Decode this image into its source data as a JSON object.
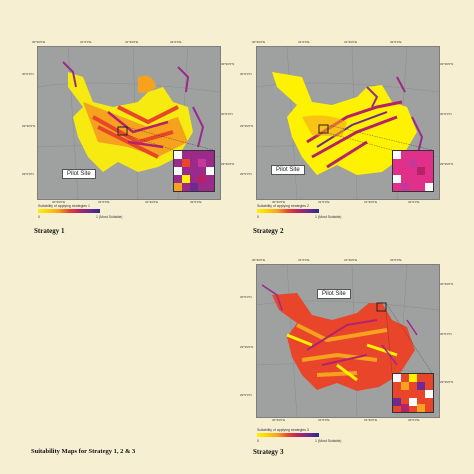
{
  "figure_caption": "Suitability Maps for Strategy 1, 2 & 3",
  "legend_min": "0",
  "colors": {
    "background": "#f7efd2",
    "map_base": "#9ea19f",
    "low": "#fff200",
    "mid": "#e9452b",
    "high": "#2e2a86"
  },
  "panels": [
    {
      "caption": "Strategy 1",
      "pilot_label": "Pilot Site",
      "legend_title": "Suitability of applying strategies 1",
      "legend_max": "1 (Most Suitable)",
      "top_ticks": [
        "30°30'0\"E",
        "31°0'0\"E",
        "31°30'0\"E",
        "32°0'0\"E"
      ],
      "left_ticks": [
        "30°0'0\"N",
        "29°30'0\"N",
        "29°0'0\"N"
      ],
      "right_ticks": [
        "30°30'0\"N",
        "30°0'0\"N",
        "29°30'0\"N"
      ],
      "bottom_ticks": [
        "30°30'0\"E",
        "31°0'0\"E",
        "31°30'0\"E",
        "32°0'0\"E"
      ]
    },
    {
      "caption": "Strategy 2",
      "pilot_label": "Pilot Site",
      "legend_title": "Suitability of applying strategies 2",
      "legend_max": "1 (Most Suitable)",
      "top_ticks": [
        "30°30'0\"E",
        "31°0'0\"E",
        "31°30'0\"E",
        "32°0'0\"E"
      ],
      "left_ticks": [
        "30°0'0\"N",
        "29°30'0\"N",
        "29°0'0\"N"
      ],
      "right_ticks": [
        "30°30'0\"N",
        "30°0'0\"N",
        "29°30'0\"N"
      ],
      "bottom_ticks": [
        "30°30'0\"E",
        "31°0'0\"E",
        "31°30'0\"E",
        "32°0'0\"E"
      ]
    },
    {
      "caption": "Strategy 3",
      "pilot_label": "Pilot Site",
      "legend_title": "Suitability of applying strategies 3",
      "legend_max": "1 (Most Suitable)",
      "top_ticks": [
        "30°30'0\"E",
        "31°0'0\"E",
        "31°30'0\"E",
        "32°0'0\"E"
      ],
      "left_ticks": [
        "30°0'0\"N",
        "29°30'0\"N",
        "29°0'0\"N"
      ],
      "right_ticks": [
        "30°30'0\"N",
        "30°0'0\"N",
        "29°30'0\"N"
      ],
      "bottom_ticks": [
        "30°30'0\"E",
        "31°0'0\"E",
        "31°30'0\"E",
        "32°0'0\"E"
      ]
    }
  ]
}
